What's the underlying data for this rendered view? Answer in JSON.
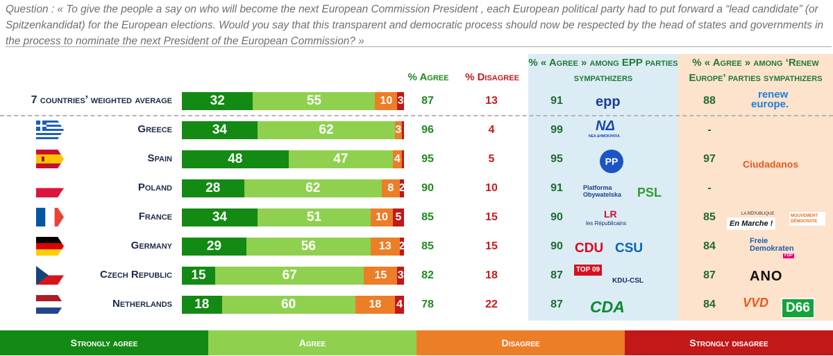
{
  "question": "Question : « To give the people a say on who will become the next European Commission President , each European political party had to put forward a “lead candidate” (or Spitzenkandidat) for the European elections. Would you say that this transparent and democratic process should now be respected by the head of states and governments in the process to nominate the next President of the European Commission? »",
  "headers": {
    "agree": "% Agree",
    "disagree": "% Disagree",
    "epp": "% « Agree » among EPP parties sympathizers",
    "renew": "% « Agree » among ‘Renew Europe’ parties sympathizers"
  },
  "colors": {
    "strongly_agree": "#138a13",
    "agree": "#8fd14f",
    "disagree": "#ec7e28",
    "strongly_disagree": "#c21818",
    "agree_text": "#1f8a1f",
    "disagree_text": "#c61b1b"
  },
  "chart_data": {
    "type": "bar",
    "orientation": "horizontal",
    "stacked": true,
    "categories": [
      "7 countries’ weighted average",
      "Greece",
      "Spain",
      "Poland",
      "France",
      "Germany",
      "Czech Republic",
      "Netherlands"
    ],
    "series": [
      {
        "name": "Strongly agree",
        "values": [
          32,
          34,
          48,
          28,
          34,
          29,
          15,
          18
        ]
      },
      {
        "name": "Agree",
        "values": [
          55,
          62,
          47,
          62,
          51,
          56,
          67,
          60
        ]
      },
      {
        "name": "Disagree",
        "values": [
          10,
          3,
          4,
          8,
          10,
          13,
          15,
          18
        ]
      },
      {
        "name": "Strongly disagree",
        "values": [
          3,
          1,
          1,
          2,
          5,
          2,
          3,
          4
        ]
      }
    ],
    "bar_labels": [
      [
        "32",
        "55",
        "10",
        "3"
      ],
      [
        "34",
        "62",
        "3",
        ""
      ],
      [
        "48",
        "47",
        "4",
        ""
      ],
      [
        "28",
        "62",
        "8",
        "2"
      ],
      [
        "34",
        "51",
        "10",
        "5"
      ],
      [
        "29",
        "56",
        "13",
        "2"
      ],
      [
        "15",
        "67",
        "15",
        "3"
      ],
      [
        "18",
        "60",
        "18",
        "4"
      ]
    ],
    "agree_total": [
      87,
      96,
      95,
      90,
      85,
      85,
      82,
      78
    ],
    "disagree_total": [
      13,
      4,
      5,
      10,
      15,
      15,
      18,
      22
    ],
    "epp_agree": [
      91,
      99,
      95,
      91,
      90,
      90,
      87,
      87
    ],
    "renew_agree": [
      "88",
      "-",
      "97",
      "-",
      "85",
      "84",
      "87",
      "84"
    ],
    "legend": [
      "Strongly agree",
      "Agree",
      "Disagree",
      "Strongly disagree"
    ],
    "legend_position": "bottom"
  },
  "flags": [
    "greece",
    "spain",
    "poland",
    "france",
    "germany",
    "czech-republic",
    "netherlands"
  ],
  "epp_logos": [
    [
      "epp"
    ],
    [
      "ΝΔ",
      "ΝΕΑ ΔΗΜΟΚΡΑΤΙΑ"
    ],
    [
      "PP"
    ],
    [
      "Platforma Obywatelska",
      "PSL"
    ],
    [
      "LR",
      "les Républicains"
    ],
    [
      "CDU",
      "CSU"
    ],
    [
      "TOP 09",
      "KDU-CSL"
    ],
    [
      "CDA"
    ]
  ],
  "renew_logos": [
    [
      "renew",
      "europe."
    ],
    [],
    [
      "Ciudadanos"
    ],
    [],
    [
      "LA RÉPUBLIQUE",
      "En Marche !",
      "MOUVEMENT DÉMOCRATE"
    ],
    [
      "Freie",
      "Demokraten",
      "FDP"
    ],
    [
      "ANO"
    ],
    [
      "VVD",
      "D66"
    ]
  ]
}
